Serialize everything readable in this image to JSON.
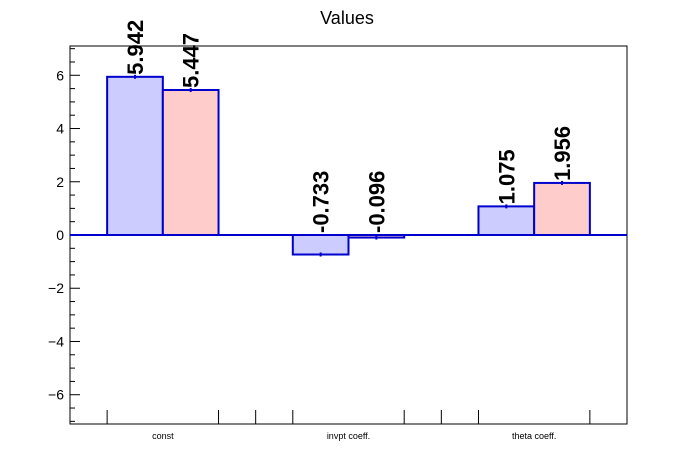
{
  "chart_data": {
    "type": "bar",
    "title": "Values",
    "categories": [
      "const",
      "invpt coeff.",
      "theta coeff."
    ],
    "series": [
      {
        "values": [
          5.942,
          -0.733,
          1.075
        ],
        "color": "#ccccff",
        "edge": "#0000cc"
      },
      {
        "values": [
          5.447,
          -0.096,
          1.956
        ],
        "color": "#ffcccc",
        "edge": "#0000cc"
      }
    ],
    "data_labels": [
      [
        "5.942",
        "-0.733",
        "1.075"
      ],
      [
        "5.447",
        "-0.096",
        "1.956"
      ]
    ],
    "ylim": [
      -7.1,
      7.1
    ],
    "yticks": [
      -6,
      -4,
      -2,
      0,
      2,
      4,
      6
    ],
    "ytick_labels": [
      "−6",
      "−4",
      "−2",
      "0",
      "2",
      "4",
      "6"
    ],
    "grid": false,
    "legend": "none"
  }
}
